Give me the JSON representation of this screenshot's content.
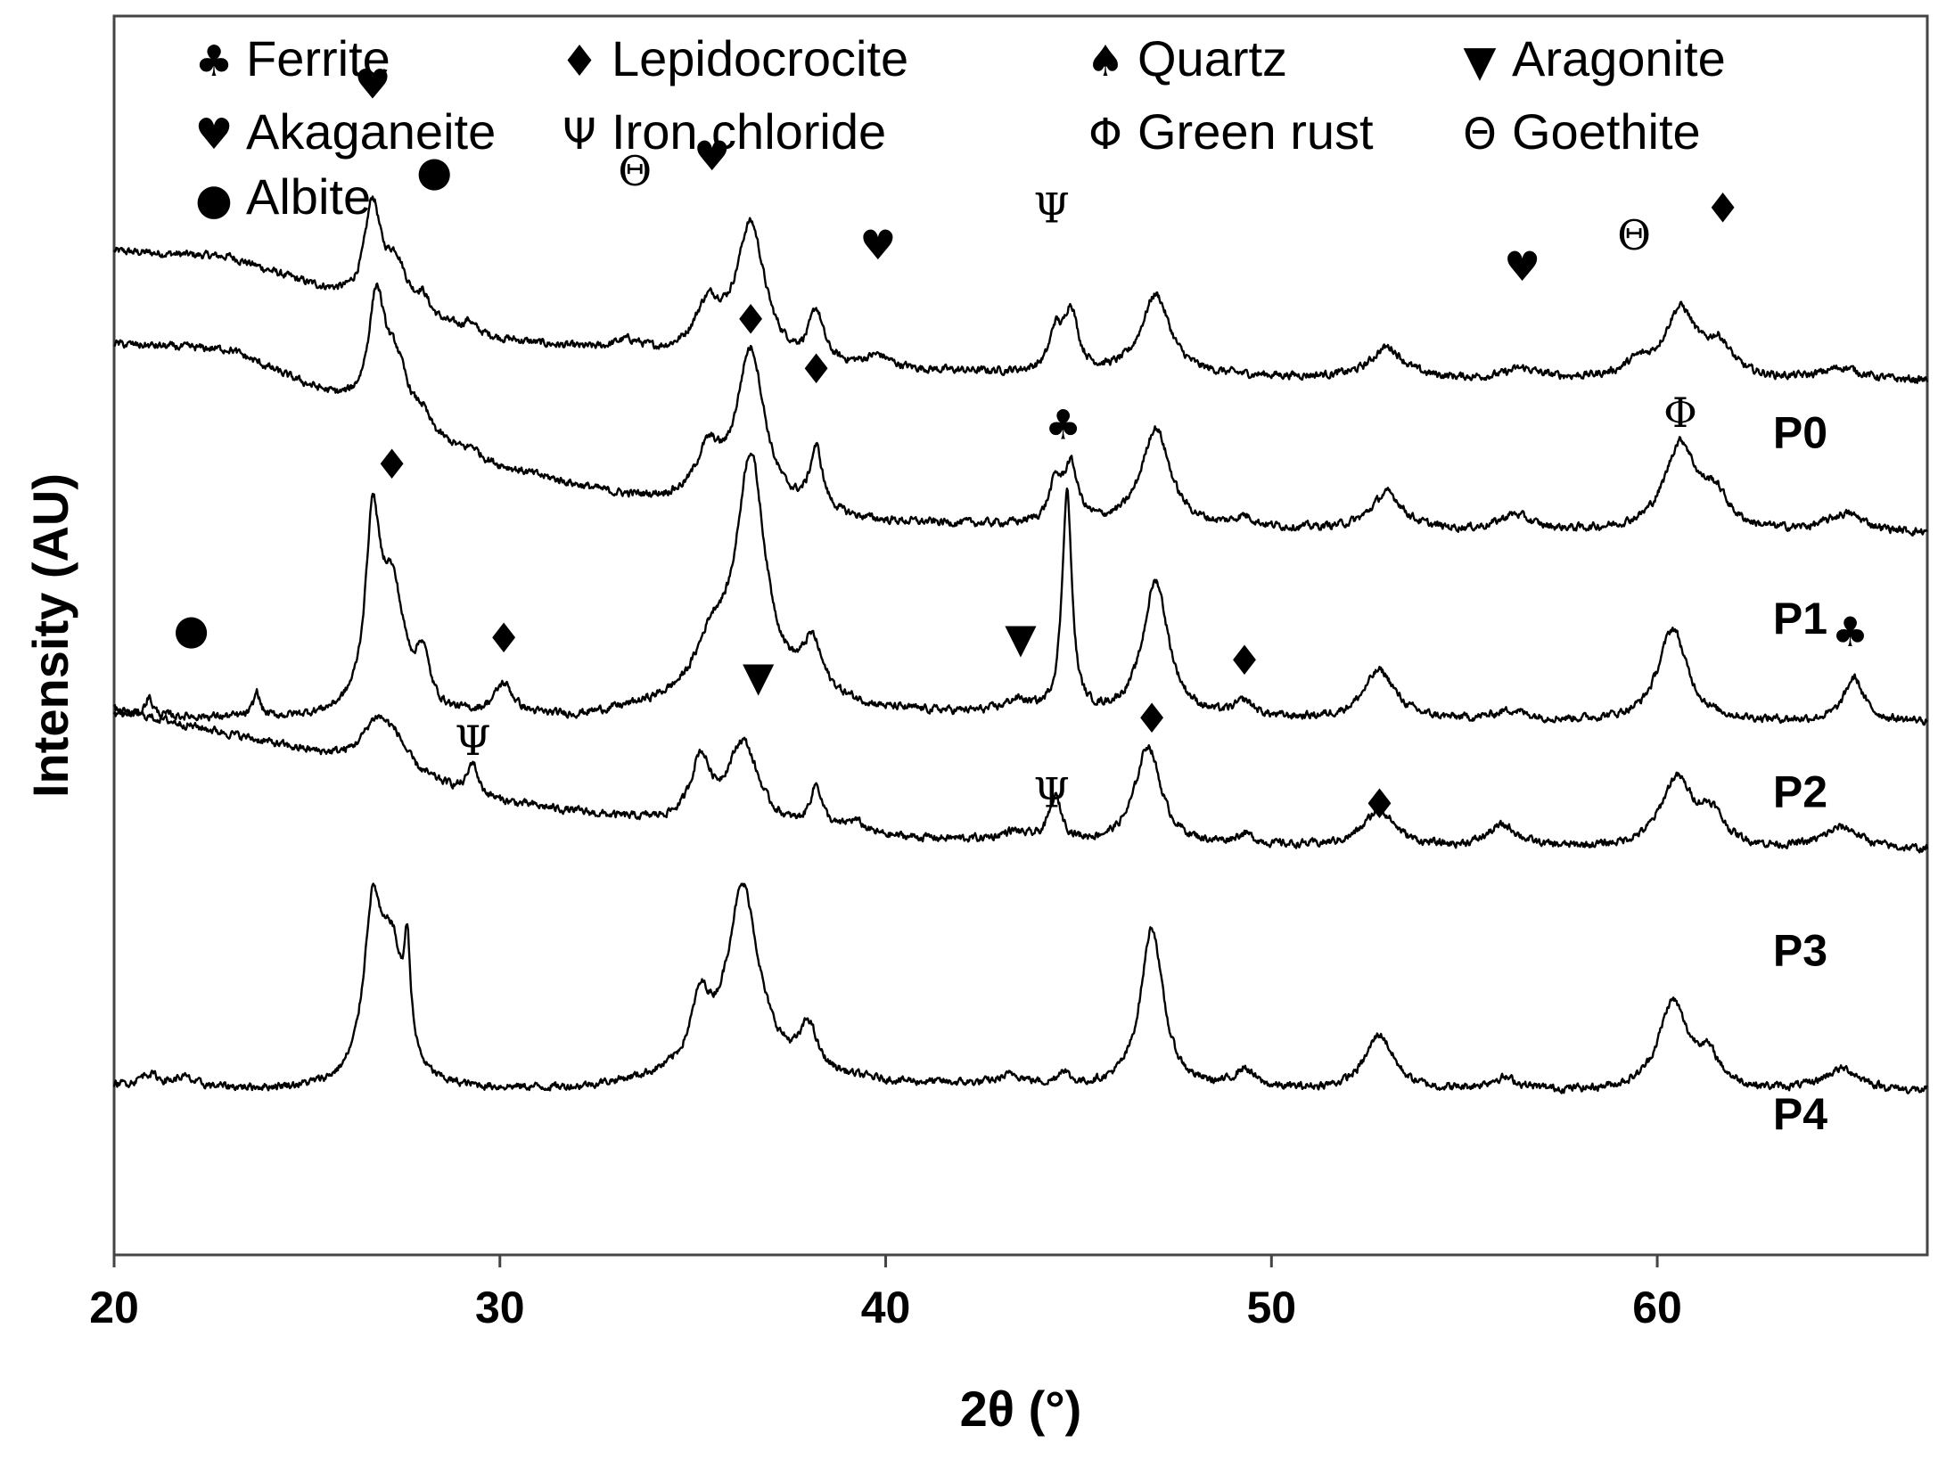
{
  "chart_data": {
    "type": "line",
    "xlabel": "2θ (°)",
    "ylabel": "Intensity (AU)",
    "xlim": [
      20,
      67
    ],
    "ylim": [
      0,
      100
    ],
    "x_ticks": [
      20,
      30,
      40,
      50,
      60
    ],
    "y_ticks_shown": false,
    "grid": false,
    "legend_position": "top",
    "legend": [
      {
        "symbol": "♣",
        "icon": "club-icon",
        "label": "Ferrite"
      },
      {
        "symbol": "♦",
        "icon": "diamond-icon",
        "label": "Lepidocrocite"
      },
      {
        "symbol": "♠",
        "icon": "spade-icon",
        "label": "Quartz"
      },
      {
        "symbol": "▼",
        "icon": "triangle-down-icon",
        "label": "Aragonite"
      },
      {
        "symbol": "♥",
        "icon": "heart-icon",
        "label": "Akaganeite"
      },
      {
        "symbol": "Ψ",
        "icon": "psi-icon",
        "label": "Iron chloride"
      },
      {
        "symbol": "Φ",
        "icon": "phi-icon",
        "label": "Green rust"
      },
      {
        "symbol": "Θ",
        "icon": "theta-icon",
        "label": "Goethite"
      },
      {
        "symbol": "●",
        "icon": "circle-icon",
        "label": "Albite"
      }
    ],
    "series": [
      {
        "name": "P0",
        "baseline": [
          [
            20,
            81
          ],
          [
            23,
            80.5
          ],
          [
            27,
            76
          ],
          [
            30,
            73.8
          ],
          [
            33,
            72.6
          ],
          [
            36,
            71.8
          ],
          [
            40,
            71.3
          ],
          [
            45,
            71
          ],
          [
            50,
            70.8
          ],
          [
            55,
            70.6
          ],
          [
            60,
            70.6
          ],
          [
            65,
            70.5
          ],
          [
            67,
            70.5
          ]
        ],
        "peaks": [
          [
            26.7,
            8,
            0.25
          ],
          [
            27.3,
            4,
            0.35
          ],
          [
            28.0,
            1.5,
            0.2
          ],
          [
            29.2,
            0.8,
            0.15
          ],
          [
            33.3,
            1.0,
            0.5
          ],
          [
            35.4,
            4,
            0.45
          ],
          [
            36.5,
            11,
            0.45
          ],
          [
            38.2,
            4,
            0.22
          ],
          [
            39.8,
            1.0,
            0.4
          ],
          [
            44.4,
            3,
            0.18
          ],
          [
            44.8,
            5,
            0.22
          ],
          [
            47.0,
            6.5,
            0.45
          ],
          [
            53.0,
            2.5,
            0.5
          ],
          [
            56.5,
            0.8,
            0.5
          ],
          [
            59.5,
            1.0,
            0.4
          ],
          [
            60.6,
            5.5,
            0.5
          ],
          [
            61.6,
            2.5,
            0.4
          ],
          [
            64.8,
            1.0,
            0.6
          ]
        ],
        "markers": [
          {
            "symbol": "♥",
            "x": 26.7,
            "y": 94.5
          },
          {
            "symbol": "●",
            "x": 28.3,
            "y": 87.5
          },
          {
            "symbol": "Θ",
            "x": 33.5,
            "y": 87.5
          },
          {
            "symbol": "♥",
            "x": 35.5,
            "y": 88.7
          },
          {
            "symbol": "♥",
            "x": 39.8,
            "y": 81.5
          },
          {
            "symbol": "Ψ",
            "x": 44.3,
            "y": 84.5
          },
          {
            "symbol": "♥",
            "x": 56.5,
            "y": 79.8
          },
          {
            "symbol": "Θ",
            "x": 59.4,
            "y": 82.3
          },
          {
            "symbol": "♦",
            "x": 61.7,
            "y": 84.5
          }
        ]
      },
      {
        "name": "P1",
        "baseline": [
          [
            20,
            73.5
          ],
          [
            23,
            73
          ],
          [
            27,
            67
          ],
          [
            30,
            63.5
          ],
          [
            33,
            61.2
          ],
          [
            36,
            59.8
          ],
          [
            40,
            59
          ],
          [
            45,
            58.7
          ],
          [
            50,
            58.5
          ],
          [
            55,
            58.3
          ],
          [
            60,
            58.3
          ],
          [
            65,
            58.2
          ],
          [
            67,
            58.2
          ]
        ],
        "peaks": [
          [
            26.8,
            9,
            0.25
          ],
          [
            27.3,
            5,
            0.4
          ],
          [
            28.0,
            1.2,
            0.2
          ],
          [
            29.3,
            0.6,
            0.15
          ],
          [
            35.4,
            4,
            0.4
          ],
          [
            36.5,
            13,
            0.45
          ],
          [
            38.2,
            5,
            0.2
          ],
          [
            44.4,
            3,
            0.2
          ],
          [
            44.8,
            4.5,
            0.22
          ],
          [
            47.0,
            8,
            0.45
          ],
          [
            49.3,
            0.8,
            0.3
          ],
          [
            53.0,
            3,
            0.5
          ],
          [
            56.3,
            1.3,
            0.5
          ],
          [
            60.6,
            7,
            0.5
          ],
          [
            61.5,
            2.5,
            0.4
          ],
          [
            64.9,
            1.5,
            0.6
          ]
        ],
        "markers": [
          {
            "symbol": "♦",
            "x": 36.5,
            "y": 75.5
          },
          {
            "symbol": "♦",
            "x": 38.2,
            "y": 71.5
          },
          {
            "symbol": "♣",
            "x": 44.6,
            "y": 67.0
          },
          {
            "symbol": "Φ",
            "x": 60.6,
            "y": 68.0
          }
        ]
      },
      {
        "name": "P2",
        "baseline": [
          [
            20,
            43.5
          ],
          [
            24,
            43.2
          ],
          [
            28,
            43.2
          ],
          [
            32,
            43.3
          ],
          [
            35,
            44.5
          ],
          [
            37,
            45
          ],
          [
            40,
            43.8
          ],
          [
            45,
            43.3
          ],
          [
            50,
            43.1
          ],
          [
            55,
            43
          ],
          [
            60,
            43
          ],
          [
            65,
            43
          ],
          [
            67,
            43
          ]
        ],
        "peaks": [
          [
            20.9,
            1.5,
            0.12
          ],
          [
            23.7,
            2.0,
            0.1
          ],
          [
            26.7,
            14,
            0.22
          ],
          [
            27.2,
            10,
            0.4
          ],
          [
            28.0,
            4,
            0.2
          ],
          [
            30.1,
            2.5,
            0.3
          ],
          [
            35.5,
            4,
            0.5
          ],
          [
            36.5,
            19,
            0.45
          ],
          [
            38.1,
            4,
            0.3
          ],
          [
            43.4,
            1.0,
            0.4
          ],
          [
            44.7,
            18,
            0.15
          ],
          [
            47.0,
            11,
            0.4
          ],
          [
            49.3,
            1.2,
            0.3
          ],
          [
            52.8,
            4,
            0.5
          ],
          [
            56.2,
            0.8,
            0.5
          ],
          [
            60.4,
            7.5,
            0.45
          ],
          [
            65.1,
            3.5,
            0.3
          ]
        ],
        "markers": [
          {
            "symbol": "♦",
            "x": 27.2,
            "y": 63.8
          },
          {
            "symbol": "●",
            "x": 22.0,
            "y": 50.5
          },
          {
            "symbol": "♦",
            "x": 30.1,
            "y": 49.8
          },
          {
            "symbol": "▼",
            "x": 43.5,
            "y": 49.8
          },
          {
            "symbol": "♦",
            "x": 49.3,
            "y": 48.0
          },
          {
            "symbol": "♣",
            "x": 65.0,
            "y": 50.3
          },
          {
            "symbol": "▼",
            "x": 36.7,
            "y": 46.7
          }
        ]
      },
      {
        "name": "P3",
        "baseline": [
          [
            20,
            44
          ],
          [
            23,
            42
          ],
          [
            26,
            39.8
          ],
          [
            30,
            36.5
          ],
          [
            33,
            35.2
          ],
          [
            36,
            34.2
          ],
          [
            40,
            33.6
          ],
          [
            45,
            33.1
          ],
          [
            50,
            32.9
          ],
          [
            55,
            32.7
          ],
          [
            60,
            32.7
          ],
          [
            65,
            32.6
          ],
          [
            67,
            32.6
          ]
        ],
        "peaks": [
          [
            26.8,
            3.5,
            0.45
          ],
          [
            27.3,
            2,
            0.4
          ],
          [
            29.3,
            2.5,
            0.15
          ],
          [
            35.2,
            5,
            0.3
          ],
          [
            36.3,
            7,
            0.5
          ],
          [
            38.2,
            3.5,
            0.2
          ],
          [
            39.2,
            1.0,
            0.3
          ],
          [
            43.3,
            0.7,
            0.4
          ],
          [
            44.4,
            3.5,
            0.2
          ],
          [
            46.8,
            8,
            0.4
          ],
          [
            49.3,
            0.8,
            0.3
          ],
          [
            52.8,
            3,
            0.5
          ],
          [
            56.0,
            1.8,
            0.5
          ],
          [
            60.5,
            5.5,
            0.5
          ],
          [
            61.4,
            2.5,
            0.4
          ],
          [
            64.8,
            1.8,
            0.6
          ]
        ],
        "markers": [
          {
            "symbol": "Ψ",
            "x": 29.3,
            "y": 41.5
          },
          {
            "symbol": "Ψ",
            "x": 44.3,
            "y": 37.3
          },
          {
            "symbol": "♦",
            "x": 46.9,
            "y": 43.3
          },
          {
            "symbol": "♦",
            "x": 52.8,
            "y": 36.4
          }
        ]
      },
      {
        "name": "P4",
        "baseline": [
          [
            20,
            13.6
          ],
          [
            24,
            13.3
          ],
          [
            28,
            13.2
          ],
          [
            32,
            13.3
          ],
          [
            35,
            14.3
          ],
          [
            37,
            14.5
          ],
          [
            40,
            13.8
          ],
          [
            45,
            13.4
          ],
          [
            50,
            13.2
          ],
          [
            55,
            13.1
          ],
          [
            60,
            13.1
          ],
          [
            65,
            13.1
          ],
          [
            67,
            13.1
          ]
        ],
        "peaks": [
          [
            20.9,
            1.0,
            0.3
          ],
          [
            21.8,
            0.7,
            0.3
          ],
          [
            26.7,
            13,
            0.28
          ],
          [
            27.2,
            10,
            0.35
          ],
          [
            27.6,
            8,
            0.1
          ],
          [
            35.2,
            5,
            0.3
          ],
          [
            36.3,
            15,
            0.5
          ],
          [
            38.0,
            3.5,
            0.25
          ],
          [
            43.3,
            0.8,
            0.4
          ],
          [
            44.6,
            1.2,
            0.15
          ],
          [
            46.9,
            13,
            0.35
          ],
          [
            49.3,
            1.5,
            0.3
          ],
          [
            52.8,
            4.5,
            0.45
          ],
          [
            56.0,
            1.0,
            0.5
          ],
          [
            60.4,
            7,
            0.45
          ],
          [
            61.3,
            2.5,
            0.4
          ],
          [
            64.8,
            1.8,
            0.6
          ]
        ],
        "markers": []
      }
    ],
    "series_labels": [
      {
        "name": "P0",
        "x": 63.0,
        "y": 66.3
      },
      {
        "name": "P1",
        "x": 63.0,
        "y": 51.3
      },
      {
        "name": "P2",
        "x": 63.0,
        "y": 37.3
      },
      {
        "name": "P3",
        "x": 63.0,
        "y": 24.5
      },
      {
        "name": "P4",
        "x": 63.0,
        "y": 11.3
      }
    ]
  },
  "colors": {
    "line": "#000000",
    "axis": "#444444",
    "background": "#ffffff"
  }
}
